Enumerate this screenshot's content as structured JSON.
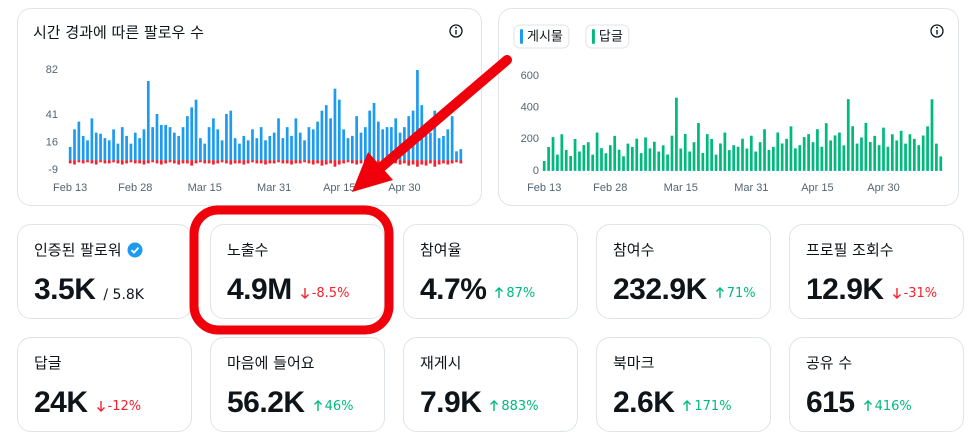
{
  "chart_data": [
    {
      "type": "bar",
      "title": "시간 경과에 따른 팔로우 수",
      "categories": [
        "Feb 13",
        null,
        null,
        null,
        null,
        null,
        null,
        null,
        null,
        null,
        null,
        null,
        null,
        null,
        null,
        "Feb 28",
        null,
        null,
        null,
        null,
        null,
        null,
        null,
        null,
        null,
        null,
        null,
        null,
        null,
        null,
        null,
        "Mar 15",
        null,
        null,
        null,
        null,
        null,
        null,
        null,
        null,
        null,
        null,
        null,
        null,
        null,
        null,
        null,
        "Mar 31",
        null,
        null,
        null,
        null,
        null,
        null,
        null,
        null,
        null,
        null,
        null,
        null,
        null,
        null,
        "Apr 15",
        null,
        null,
        null,
        null,
        null,
        null,
        null,
        null,
        null,
        null,
        null,
        null,
        null,
        null,
        "Apr 30",
        null,
        null,
        null,
        null,
        null,
        null,
        null,
        null,
        null,
        null,
        null,
        null,
        null
      ],
      "series": [
        {
          "color": "#1d9bf0",
          "values": [
            12,
            28,
            35,
            22,
            18,
            38,
            25,
            24,
            20,
            18,
            28,
            15,
            30,
            22,
            15,
            25,
            20,
            28,
            72,
            30,
            42,
            32,
            32,
            30,
            25,
            22,
            30,
            40,
            48,
            55,
            20,
            15,
            30,
            38,
            28,
            18,
            42,
            45,
            20,
            15,
            22,
            18,
            28,
            20,
            30,
            18,
            22,
            25,
            38,
            20,
            30,
            22,
            38,
            25,
            18,
            30,
            28,
            35,
            45,
            50,
            38,
            65,
            55,
            28,
            20,
            22,
            40,
            25,
            30,
            45,
            52,
            35,
            28,
            30,
            30,
            38,
            25,
            30,
            40,
            45,
            82,
            50,
            30,
            25,
            45,
            20,
            22,
            28,
            40,
            8,
            10
          ]
        },
        {
          "color": "#f4212e",
          "values": [
            -3,
            -4,
            -2,
            -3,
            -2,
            -3,
            -4,
            -2,
            -3,
            -3,
            -2,
            -3,
            -4,
            -3,
            -2,
            -3,
            -3,
            -4,
            -3,
            -2,
            -3,
            -4,
            -3,
            -2,
            -3,
            -4,
            -3,
            -3,
            -5,
            -3,
            -2,
            -3,
            -3,
            -4,
            -3,
            -2,
            -3,
            -4,
            -3,
            -3,
            -4,
            -3,
            -2,
            -3,
            -3,
            -4,
            -3,
            -3,
            -2,
            -3,
            -3,
            -4,
            -3,
            -3,
            -2,
            -3,
            -4,
            -3,
            -5,
            -4,
            -3,
            -6,
            -4,
            -3,
            -2,
            -3,
            -4,
            -3,
            -3,
            -4,
            -5,
            -3,
            -3,
            -4,
            -3,
            -3,
            -4,
            -3,
            -5,
            -4,
            -6,
            -4,
            -5,
            -3,
            -6,
            -4,
            -3,
            -4,
            -3,
            -2,
            -3
          ]
        }
      ],
      "ylim": [
        -9,
        82
      ],
      "yticks": [
        -9,
        16,
        41,
        82
      ]
    },
    {
      "type": "bar",
      "stacked": true,
      "categories": [
        "Feb 13",
        null,
        null,
        null,
        null,
        null,
        null,
        null,
        null,
        null,
        null,
        null,
        null,
        null,
        null,
        "Feb 28",
        null,
        null,
        null,
        null,
        null,
        null,
        null,
        null,
        null,
        null,
        null,
        null,
        null,
        null,
        null,
        "Mar 15",
        null,
        null,
        null,
        null,
        null,
        null,
        null,
        null,
        null,
        null,
        null,
        null,
        null,
        null,
        null,
        "Mar 31",
        null,
        null,
        null,
        null,
        null,
        null,
        null,
        null,
        null,
        null,
        null,
        null,
        null,
        null,
        "Apr 15",
        null,
        null,
        null,
        null,
        null,
        null,
        null,
        null,
        null,
        null,
        null,
        null,
        null,
        null,
        "Apr 30",
        null,
        null,
        null,
        null,
        null,
        null,
        null,
        null,
        null,
        null,
        null,
        null,
        null
      ],
      "series": [
        {
          "name": "게시물",
          "color": "#1d9bf0",
          "values": [
            3,
            2,
            4,
            3,
            2,
            3,
            5,
            2,
            3,
            4,
            2,
            3,
            3,
            4,
            2,
            3,
            2,
            4,
            3,
            3,
            2,
            4,
            3,
            2,
            3,
            5,
            3,
            2,
            4,
            3,
            3,
            2,
            4,
            3,
            2,
            3,
            4,
            3,
            2,
            3,
            4,
            3,
            2,
            3,
            3,
            4,
            2,
            3,
            3,
            2,
            4,
            3,
            2,
            3,
            4,
            3,
            2,
            3,
            3,
            4,
            3,
            2,
            4,
            3,
            2,
            3,
            5,
            3,
            2,
            4,
            3,
            3,
            2,
            4,
            3,
            2,
            3,
            4,
            3,
            2,
            3,
            4,
            3,
            2,
            3,
            3,
            4,
            2,
            3,
            3,
            2
          ]
        },
        {
          "name": "답글",
          "color": "#00ba7c",
          "values": [
            60,
            150,
            210,
            100,
            230,
            130,
            90,
            200,
            120,
            160,
            180,
            100,
            240,
            140,
            110,
            160,
            220,
            130,
            90,
            170,
            150,
            200,
            110,
            210,
            140,
            180,
            120,
            160,
            100,
            220,
            460,
            140,
            230,
            120,
            180,
            300,
            110,
            230,
            200,
            100,
            170,
            240,
            130,
            160,
            150,
            200,
            140,
            220,
            120,
            180,
            260,
            130,
            150,
            240,
            170,
            200,
            280,
            140,
            160,
            210,
            230,
            180,
            260,
            150,
            300,
            190,
            220,
            240,
            160,
            450,
            280,
            170,
            210,
            300,
            180,
            220,
            160,
            270,
            150,
            230,
            190,
            250,
            170,
            230,
            200,
            160,
            220,
            280,
            450,
            170,
            90
          ]
        }
      ],
      "ylim": [
        0,
        600
      ],
      "yticks": [
        0,
        200,
        400,
        600
      ]
    }
  ],
  "cards": [
    {
      "label": "인증된 팔로워",
      "verified": true,
      "value": "3.5K",
      "total": "/ 5.8K"
    },
    {
      "label": "노출수",
      "value": "4.9M",
      "change": "-8.5%",
      "trend": "down"
    },
    {
      "label": "참여율",
      "value": "4.7%",
      "change": "87%",
      "trend": "up"
    },
    {
      "label": "참여수",
      "value": "232.9K",
      "change": "71%",
      "trend": "up"
    },
    {
      "label": "프로필 조회수",
      "value": "12.9K",
      "change": "-31%",
      "trend": "down"
    },
    {
      "label": "답글",
      "value": "24K",
      "change": "-12%",
      "trend": "down"
    },
    {
      "label": "마음에 들어요",
      "value": "56.2K",
      "change": "46%",
      "trend": "up"
    },
    {
      "label": "재게시",
      "value": "7.9K",
      "change": "883%",
      "trend": "up"
    },
    {
      "label": "북마크",
      "value": "2.6K",
      "change": "171%",
      "trend": "up"
    },
    {
      "label": "공유 수",
      "value": "615",
      "change": "416%",
      "trend": "up"
    }
  ]
}
